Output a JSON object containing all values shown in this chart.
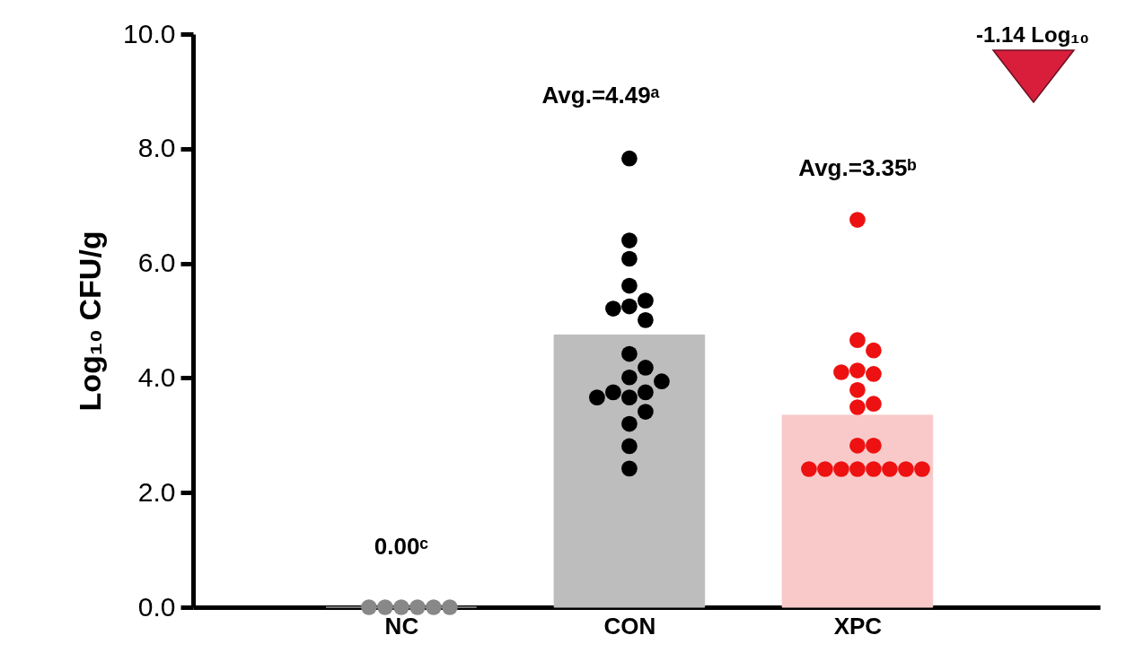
{
  "chart_data": {
    "type": "bar",
    "ylabel": "Log₁₀ CFU/g",
    "categories": [
      "NC",
      "CON",
      "XPC"
    ],
    "ylim": [
      0,
      10
    ],
    "yticks": [
      {
        "value": 0,
        "label": "0.0"
      },
      {
        "value": 2,
        "label": "2.0"
      },
      {
        "value": 4,
        "label": "4.0"
      },
      {
        "value": 6,
        "label": "6.0"
      },
      {
        "value": 8,
        "label": "8.0"
      },
      {
        "value": 10,
        "label": "10.0"
      }
    ],
    "grid": false,
    "marker": "circle",
    "series": [
      {
        "values": [
          0,
          4.75,
          3.35
        ],
        "colors": [
          "#9e9e9e",
          "#bdbdbd",
          "#f9c9c9"
        ]
      },
      {
        "type": "scatter",
        "color": "#888888",
        "x": [
          "NC",
          "NC",
          "NC",
          "NC",
          "NC",
          "NC"
        ],
        "values": [
          0,
          0,
          0,
          0,
          0,
          0
        ]
      },
      {
        "type": "scatter",
        "color": "#000000",
        "x": [
          "CON",
          "CON",
          "CON",
          "CON",
          "CON",
          "CON",
          "CON",
          "CON",
          "CON",
          "CON",
          "CON",
          "CON",
          "CON",
          "CON",
          "CON",
          "CON",
          "CON",
          "CON",
          "CON",
          "CON"
        ],
        "values": [
          7.83,
          6.4,
          6.08,
          5.61,
          5.25,
          5.01,
          5.21,
          5.35,
          4.42,
          4.18,
          4.01,
          3.75,
          3.66,
          3.75,
          3.94,
          3.66,
          3.41,
          3.2,
          2.81,
          2.42
        ]
      },
      {
        "type": "scatter",
        "color": "#ee1111",
        "x": [
          "XPC",
          "XPC",
          "XPC",
          "XPC",
          "XPC",
          "XPC",
          "XPC",
          "XPC",
          "XPC",
          "XPC",
          "XPC",
          "XPC",
          "XPC",
          "XPC",
          "XPC",
          "XPC",
          "XPC",
          "XPC",
          "XPC"
        ],
        "values": [
          6.76,
          4.66,
          4.48,
          4.13,
          4.07,
          4.1,
          3.79,
          3.55,
          3.49,
          2.82,
          2.82,
          2.41,
          2.41,
          2.41,
          2.41,
          2.41,
          2.41,
          2.41,
          2.41
        ]
      }
    ],
    "annotations": [
      "0.00ᶜ",
      "Avg.=4.49ᵃ",
      "Avg.=3.35ᵇ",
      "-1.14 Log₁₀"
    ]
  }
}
